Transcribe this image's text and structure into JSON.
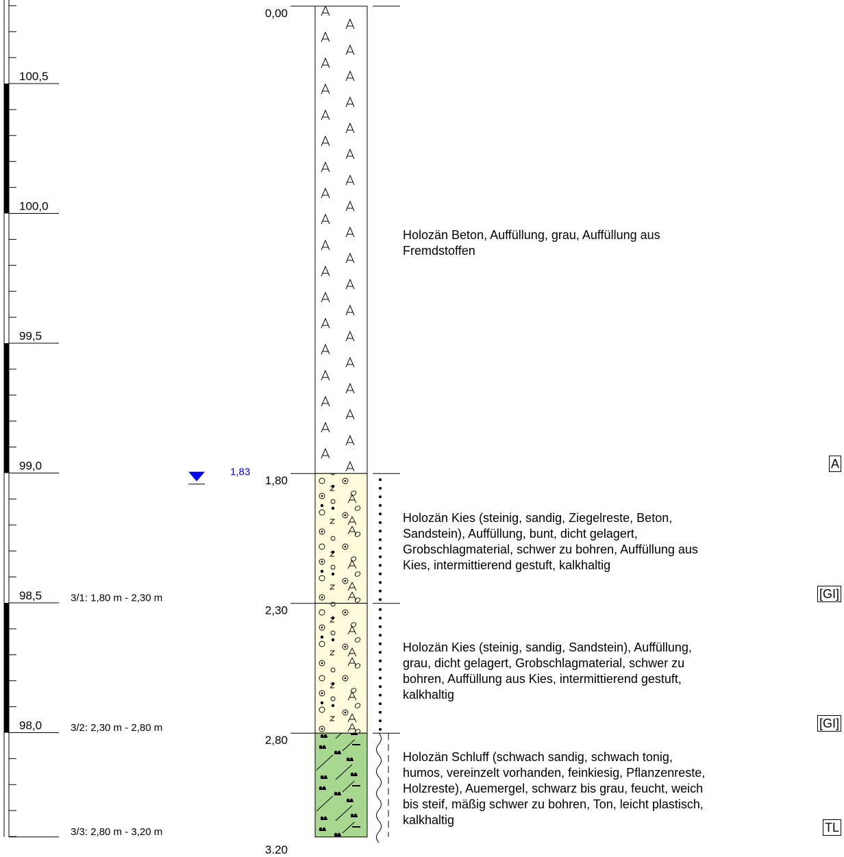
{
  "elevation_scale": {
    "labels": [
      {
        "value": 100.5,
        "text": "100,5"
      },
      {
        "value": 100.0,
        "text": "100,0"
      },
      {
        "value": 99.5,
        "text": "99,5"
      },
      {
        "value": 99.0,
        "text": "99,0"
      },
      {
        "value": 98.5,
        "text": "98,5"
      },
      {
        "value": 98.0,
        "text": "98,0"
      }
    ]
  },
  "depth_labels": [
    {
      "depth": 0.0,
      "text": "0,00"
    },
    {
      "depth": 1.8,
      "text": "1,80"
    },
    {
      "depth": 2.3,
      "text": "2,30"
    },
    {
      "depth": 2.8,
      "text": "2,80"
    },
    {
      "depth": 3.2,
      "text": "3,20"
    }
  ],
  "groundwater": {
    "depth": 1.83,
    "text": "1,83",
    "color": "#0000ff"
  },
  "samples": [
    {
      "depth": 2.3,
      "text": "3/1: 1,80 m - 2,30 m"
    },
    {
      "depth": 2.8,
      "text": "3/2: 2,30 m - 2,80 m"
    },
    {
      "depth": 3.2,
      "text": "3/3: 2,80 m - 3,20 m"
    }
  ],
  "layers": [
    {
      "top": 0.0,
      "bottom": 1.8,
      "pattern": "fill-A",
      "fill": "#ffffff",
      "consistency": "none",
      "description": " Holozän Beton, Auffüllung, grau, Auffüllung aus\nFremdstoffen",
      "soil_group": "A"
    },
    {
      "top": 1.8,
      "bottom": 2.3,
      "pattern": "gravel-fill",
      "fill": "#fffbdc",
      "consistency": "dots",
      "description": " Holozän Kies (steinig, sandig, Ziegelreste, Beton,\nSandstein), Auffüllung, bunt, dicht gelagert,\nGrobschlagmaterial, schwer zu bohren, Auffüllung aus\nKies, intermittierend gestuft, kalkhaltig",
      "soil_group": "[GI]"
    },
    {
      "top": 2.3,
      "bottom": 2.8,
      "pattern": "gravel-fill",
      "fill": "#fffbdc",
      "consistency": "dots",
      "description": " Holozän Kies (steinig, sandig, Sandstein), Auffüllung,\ngrau, dicht gelagert, Grobschlagmaterial, schwer zu\nbohren, Auffüllung aus Kies, intermittierend gestuft,\nkalkhaltig",
      "soil_group": "[GI]"
    },
    {
      "top": 2.8,
      "bottom": 3.2,
      "pattern": "silt-organic",
      "fill": "#a8d890",
      "consistency": "wavy-dashed",
      "description": " Holozän Schluff (schwach sandig, schwach tonig,\nhumos, vereinzelt vorhanden, feinkiesig, Pflanzenreste,\nHolzreste), Auemergel, schwarz bis grau, feucht, weich\nbis steif, mäßig schwer zu bohren, Ton, leicht plastisch,\nkalkhaltig",
      "soil_group": "TL"
    }
  ]
}
